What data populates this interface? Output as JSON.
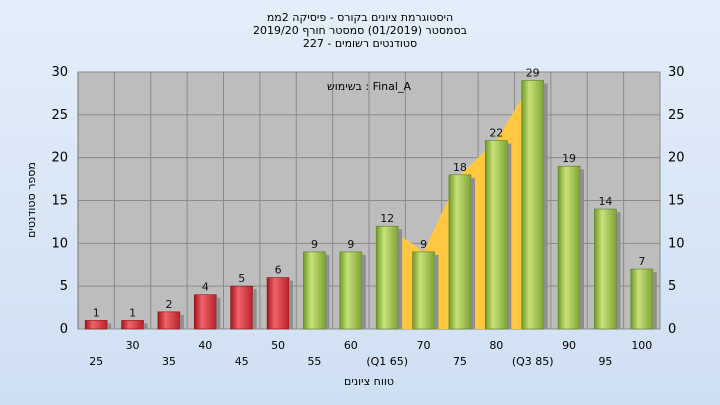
{
  "chart_data": {
    "type": "bar",
    "title_lines": [
      "היסטוגרמת ציונים בקורס - פיסיקה 2ממ",
      "בסמסטר  (01/2019)  סמסטר חורף 2019/20",
      "סטודנטים רשומים - 227"
    ],
    "inner_label": "בשימוש : Final_A",
    "ylabel": "מספר סטודנטים",
    "xlabel": "טווח ציונים",
    "ylim": [
      0,
      30
    ],
    "yticks": [
      0,
      5,
      10,
      15,
      20,
      25,
      30
    ],
    "categories": [
      "25",
      "30",
      "35",
      "40",
      "45",
      "50",
      "55",
      "60",
      "(Q1 65)",
      "70",
      "75",
      "80",
      "(Q3 85)",
      "90",
      "95",
      "100"
    ],
    "values": [
      1,
      1,
      2,
      4,
      5,
      6,
      9,
      9,
      12,
      9,
      18,
      22,
      29,
      19,
      14,
      7
    ],
    "bar_colors": [
      "red",
      "red",
      "red",
      "red",
      "red",
      "red",
      "green",
      "green",
      "green",
      "green",
      "green",
      "green",
      "green",
      "green",
      "green",
      "green"
    ],
    "iqr_band": {
      "from": "(Q1 65)",
      "to": "(Q3 85)",
      "color": "#ffc840"
    },
    "grid": true,
    "colors": {
      "plot_bg": "#bdbdbd",
      "red_bar": "#d8343c",
      "green_bar": "#9cc24a",
      "band": "#ffc840",
      "page_bg": "#d8e6f6"
    }
  }
}
